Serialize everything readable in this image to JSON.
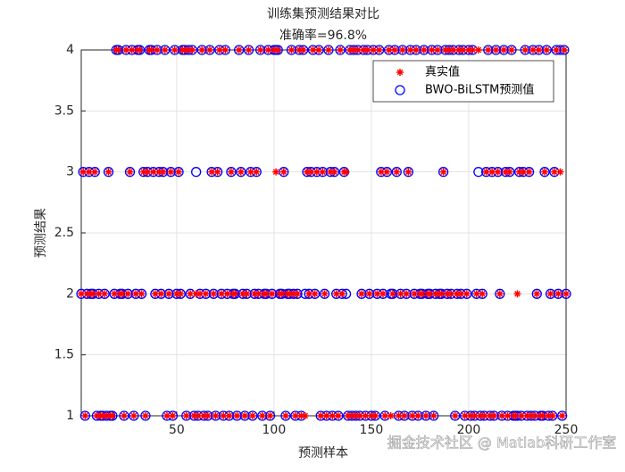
{
  "chart_data": {
    "type": "scatter",
    "title": "训练集预测结果对比",
    "subtitle": "准确率=96.8%",
    "x_label": "预测样本",
    "y_label": "预测结果",
    "xlim": [
      1,
      250
    ],
    "ylim": [
      1,
      4
    ],
    "xticks": [
      50,
      100,
      150,
      200,
      250
    ],
    "yticks": [
      1,
      1.5,
      2,
      2.5,
      3,
      3.5,
      4
    ],
    "grid": true,
    "legend": "top-right",
    "annotation": "掘金技术社区 @ Matlab科研工作室",
    "x": [
      1,
      2,
      3,
      4,
      5,
      6,
      7,
      8,
      9,
      10,
      11,
      12,
      13,
      14,
      15,
      16,
      17,
      18,
      19,
      20,
      21,
      22,
      23,
      24,
      25,
      26,
      27,
      28,
      29,
      30,
      31,
      32,
      33,
      34,
      35,
      36,
      37,
      38,
      39,
      40,
      41,
      42,
      43,
      44,
      45,
      46,
      47,
      48,
      49,
      50,
      51,
      52,
      53,
      54,
      55,
      56,
      57,
      58,
      59,
      60,
      61,
      62,
      63,
      64,
      65,
      66,
      67,
      68,
      69,
      70,
      71,
      72,
      73,
      74,
      75,
      76,
      77,
      78,
      79,
      80,
      81,
      82,
      83,
      84,
      85,
      86,
      87,
      88,
      89,
      90,
      91,
      92,
      93,
      94,
      95,
      96,
      97,
      98,
      99,
      100,
      101,
      102,
      103,
      104,
      105,
      106,
      107,
      108,
      109,
      110,
      111,
      112,
      113,
      114,
      115,
      116,
      117,
      118,
      119,
      120,
      121,
      122,
      123,
      124,
      125,
      126,
      127,
      128,
      129,
      130,
      131,
      132,
      133,
      134,
      135,
      136,
      137,
      138,
      139,
      140,
      141,
      142,
      143,
      144,
      145,
      146,
      147,
      148,
      149,
      150,
      151,
      152,
      153,
      154,
      155,
      156,
      157,
      158,
      159,
      160,
      161,
      162,
      163,
      164,
      165,
      166,
      167,
      168,
      169,
      170,
      171,
      172,
      173,
      174,
      175,
      176,
      177,
      178,
      179,
      180,
      181,
      182,
      183,
      184,
      185,
      186,
      187,
      188,
      189,
      190,
      191,
      192,
      193,
      194,
      195,
      196,
      197,
      198,
      199,
      200,
      201,
      202,
      203,
      204,
      205,
      206,
      207,
      208,
      209,
      210,
      211,
      212,
      213,
      214,
      215,
      216,
      217,
      218,
      219,
      220,
      221,
      222,
      223,
      224,
      225,
      226,
      227,
      228,
      229,
      230,
      231,
      232,
      233,
      234,
      235,
      236,
      237,
      238,
      239,
      240,
      241,
      242,
      243,
      244,
      245,
      246,
      247,
      248,
      249,
      250
    ],
    "series": [
      {
        "name": "真实值",
        "color": "#ff0000",
        "marker": "star",
        "values": [
          2,
          3,
          1,
          2,
          3,
          2,
          2,
          3,
          1,
          2,
          1,
          1,
          2,
          1,
          3,
          1,
          1,
          2,
          4,
          4,
          2,
          2,
          1,
          4,
          2,
          3,
          4,
          1,
          2,
          4,
          4,
          2,
          3,
          1,
          3,
          4,
          4,
          3,
          2,
          4,
          3,
          2,
          3,
          4,
          1,
          2,
          3,
          1,
          4,
          2,
          3,
          2,
          4,
          4,
          1,
          4,
          2,
          4,
          1,
          2,
          1,
          2,
          4,
          1,
          2,
          1,
          4,
          3,
          2,
          1,
          3,
          4,
          2,
          1,
          4,
          2,
          1,
          3,
          2,
          2,
          1,
          4,
          3,
          2,
          1,
          2,
          4,
          3,
          1,
          2,
          3,
          2,
          4,
          1,
          2,
          2,
          4,
          1,
          2,
          4,
          3,
          4,
          2,
          2,
          3,
          1,
          2,
          2,
          4,
          2,
          1,
          2,
          4,
          1,
          4,
          1,
          3,
          2,
          3,
          4,
          2,
          3,
          4,
          1,
          3,
          2,
          1,
          4,
          3,
          1,
          3,
          2,
          1,
          4,
          2,
          3,
          3,
          1,
          4,
          1,
          4,
          1,
          4,
          1,
          2,
          4,
          1,
          4,
          2,
          1,
          4,
          1,
          2,
          4,
          3,
          2,
          1,
          3,
          4,
          1,
          2,
          4,
          3,
          1,
          2,
          4,
          1,
          2,
          3,
          4,
          1,
          2,
          4,
          1,
          2,
          2,
          4,
          1,
          2,
          2,
          4,
          1,
          2,
          4,
          2,
          2,
          3,
          4,
          2,
          4,
          2,
          4,
          1,
          2,
          4,
          2,
          4,
          1,
          2,
          4,
          1,
          4,
          1,
          2,
          4,
          1,
          2,
          1,
          3,
          4,
          1,
          3,
          1,
          4,
          3,
          2,
          1,
          4,
          3,
          1,
          3,
          4,
          1,
          1,
          2,
          3,
          1,
          3,
          4,
          1,
          3,
          1,
          4,
          1,
          2,
          4,
          1,
          1,
          3,
          4,
          1,
          2,
          1,
          3,
          4,
          2,
          3,
          1,
          4,
          2
        ]
      },
      {
        "name": "BWO-BiLSTM预测值",
        "color": "#0000ff",
        "marker": "circle",
        "values": [
          2,
          3,
          1,
          2,
          3,
          2,
          2,
          3,
          1,
          2,
          1,
          1,
          2,
          1,
          3,
          1,
          1,
          2,
          4,
          4,
          2,
          2,
          1,
          4,
          2,
          3,
          4,
          1,
          2,
          4,
          4,
          2,
          3,
          1,
          3,
          4,
          4,
          3,
          2,
          4,
          3,
          2,
          3,
          4,
          1,
          2,
          3,
          1,
          4,
          2,
          3,
          2,
          4,
          4,
          1,
          4,
          2,
          4,
          1,
          3,
          1,
          2,
          4,
          1,
          2,
          1,
          4,
          3,
          2,
          1,
          3,
          4,
          2,
          1,
          4,
          2,
          1,
          3,
          2,
          2,
          1,
          4,
          3,
          2,
          1,
          2,
          4,
          3,
          1,
          2,
          3,
          2,
          4,
          1,
          2,
          2,
          4,
          1,
          2,
          4,
          4,
          4,
          2,
          2,
          3,
          1,
          2,
          2,
          4,
          2,
          1,
          2,
          4,
          1,
          4,
          2,
          3,
          2,
          3,
          4,
          2,
          3,
          4,
          1,
          3,
          2,
          1,
          4,
          3,
          1,
          3,
          2,
          1,
          4,
          2,
          3,
          2,
          1,
          4,
          1,
          4,
          1,
          4,
          1,
          2,
          4,
          1,
          4,
          2,
          1,
          4,
          1,
          2,
          4,
          3,
          2,
          1,
          3,
          4,
          2,
          2,
          4,
          3,
          1,
          2,
          4,
          1,
          2,
          3,
          4,
          1,
          2,
          4,
          1,
          2,
          2,
          4,
          1,
          2,
          2,
          4,
          1,
          2,
          4,
          2,
          2,
          3,
          4,
          2,
          4,
          2,
          4,
          1,
          2,
          4,
          2,
          4,
          1,
          2,
          4,
          1,
          4,
          1,
          2,
          3,
          1,
          2,
          1,
          3,
          4,
          1,
          3,
          1,
          4,
          3,
          2,
          1,
          4,
          3,
          1,
          3,
          4,
          1,
          1,
          1,
          3,
          1,
          3,
          4,
          1,
          3,
          1,
          4,
          1,
          2,
          4,
          1,
          1,
          3,
          4,
          1,
          2,
          1,
          3,
          4,
          2,
          4,
          1,
          4,
          2
        ]
      }
    ]
  }
}
